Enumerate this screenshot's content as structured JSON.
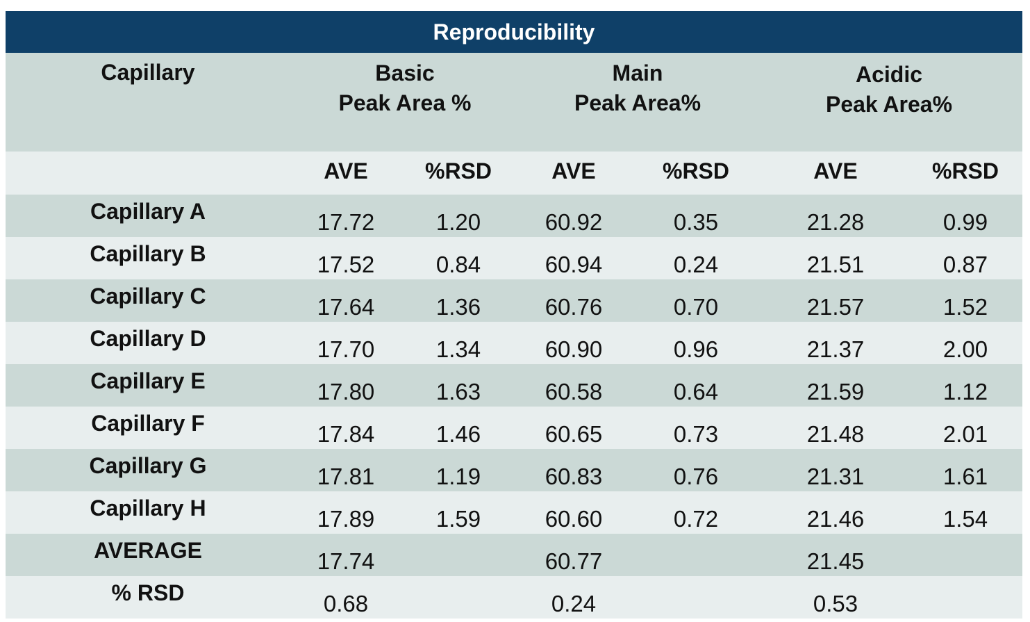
{
  "chart_data": {
    "type": "table",
    "title": "Reproducibility",
    "header": {
      "first_col": "Capillary",
      "groups": [
        {
          "line1": "Basic",
          "line2": "Peak Area %"
        },
        {
          "line1": "Main",
          "line2": "Peak Area%"
        },
        {
          "line1": "Acidic",
          "line2": "Peak Area%"
        }
      ],
      "subheaders": [
        "AVE",
        "%RSD",
        "AVE",
        "%RSD",
        "AVE",
        "%RSD"
      ]
    },
    "rows": [
      {
        "label": "Capillary A",
        "values": [
          "17.72",
          "1.20",
          "60.92",
          "0.35",
          "21.28",
          "0.99"
        ]
      },
      {
        "label": "Capillary B",
        "values": [
          "17.52",
          "0.84",
          "60.94",
          "0.24",
          "21.51",
          "0.87"
        ]
      },
      {
        "label": "Capillary C",
        "values": [
          "17.64",
          "1.36",
          "60.76",
          "0.70",
          "21.57",
          "1.52"
        ]
      },
      {
        "label": "Capillary D",
        "values": [
          "17.70",
          "1.34",
          "60.90",
          "0.96",
          "21.37",
          "2.00"
        ]
      },
      {
        "label": "Capillary E",
        "values": [
          "17.80",
          "1.63",
          "60.58",
          "0.64",
          "21.59",
          "1.12"
        ]
      },
      {
        "label": "Capillary F",
        "values": [
          "17.84",
          "1.46",
          "60.65",
          "0.73",
          "21.48",
          "2.01"
        ]
      },
      {
        "label": "Capillary G",
        "values": [
          "17.81",
          "1.19",
          "60.83",
          "0.76",
          "21.31",
          "1.61"
        ]
      },
      {
        "label": "Capillary H",
        "values": [
          "17.89",
          "1.59",
          "60.60",
          "0.72",
          "21.46",
          "1.54"
        ]
      },
      {
        "label": "AVERAGE",
        "values": [
          "17.74",
          "",
          "60.77",
          "",
          "21.45",
          ""
        ]
      },
      {
        "label": "% RSD",
        "values": [
          "0.68",
          "",
          "0.24",
          "",
          "0.53",
          ""
        ]
      }
    ]
  },
  "colors": {
    "title_bar": "#0f4068",
    "row_dark": "#cbd9d6",
    "row_light": "#e8eeee"
  }
}
